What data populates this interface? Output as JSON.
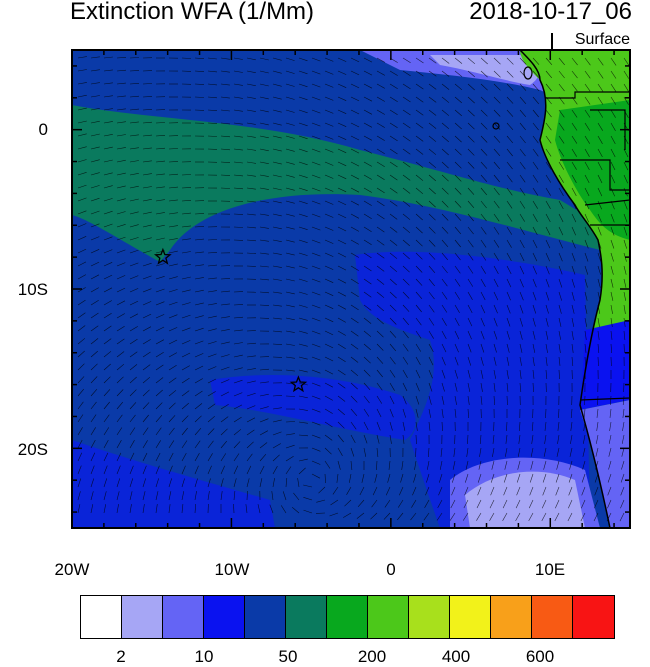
{
  "title": "Extinction WFA (1/Mm)",
  "datetime": "2018-10-17_06",
  "level": "Surface",
  "map": {
    "lon_range": [
      -20,
      15
    ],
    "lat_range": [
      -25,
      5
    ],
    "lon_tick_labels": [
      "20W",
      "10W",
      "0",
      "10E"
    ],
    "lat_tick_labels": [
      "0",
      "10S",
      "20S"
    ],
    "markers": [
      {
        "name": "star-marker-1",
        "lon": -14.3,
        "lat": -8.0
      },
      {
        "name": "star-marker-2",
        "lon": -5.8,
        "lat": -16.0
      }
    ]
  },
  "colorbar": {
    "colors": [
      "#ffffff",
      "#a6a6f5",
      "#6464f5",
      "#0a12f0",
      "#0a3aa8",
      "#0a7a5e",
      "#08a81e",
      "#4cc81a",
      "#a8e01c",
      "#f2f21a",
      "#f8a01a",
      "#f85a14",
      "#f81414"
    ],
    "labels": [
      "2",
      "10",
      "50",
      "200",
      "400",
      "600"
    ]
  },
  "palette": {
    "ocean_deep": "#0a3aa8",
    "ocean_bright": "#0a24d8",
    "ocean_green": "#0a7a5e",
    "light_blue": "#a6a6f5",
    "mid_blue": "#6464f5",
    "land_green": "#4cc81a",
    "land_dark_green": "#08a81e"
  }
}
